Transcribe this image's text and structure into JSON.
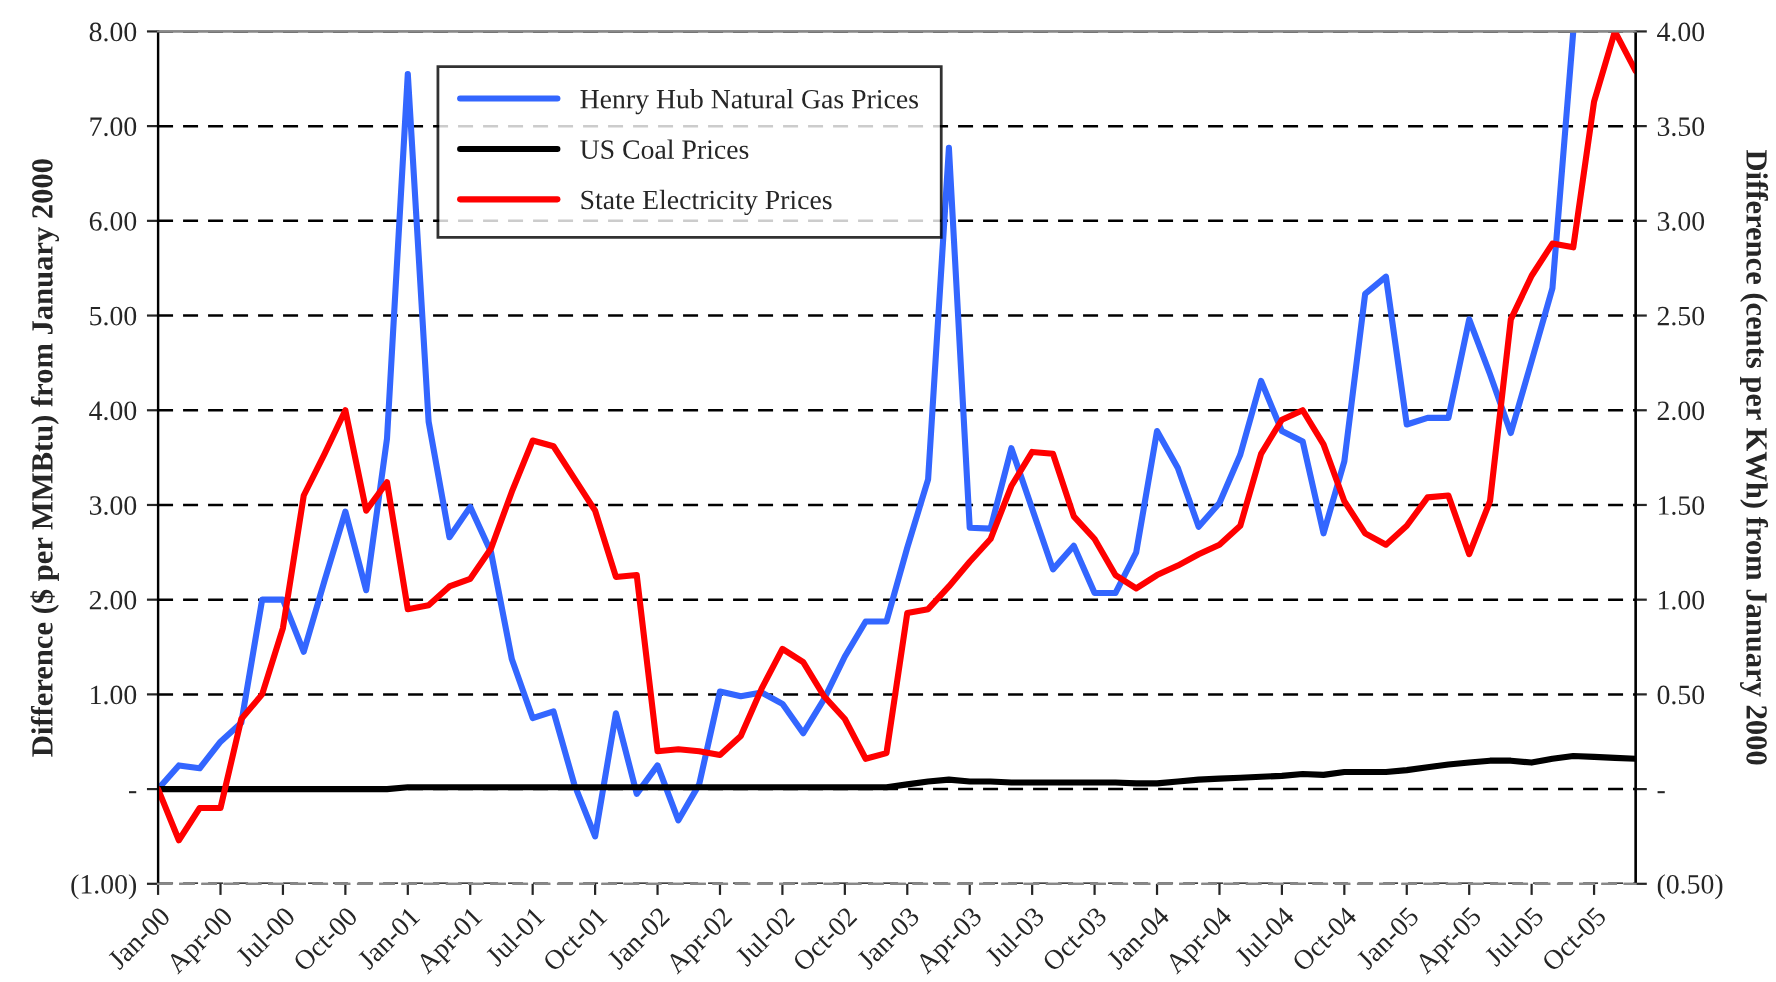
{
  "chart_data": {
    "type": "line",
    "ylabel": "Difference ($ per MMBtu) from January 2000",
    "y2label": "Difference (cents per KWh) from January 2000",
    "categories": [
      "Jan-00",
      null,
      null,
      "Apr-00",
      null,
      null,
      "Jul-00",
      null,
      null,
      "Oct-00",
      null,
      null,
      "Jan-01",
      null,
      null,
      "Apr-01",
      null,
      null,
      "Jul-01",
      null,
      null,
      "Oct-01",
      null,
      null,
      "Jan-02",
      null,
      null,
      "Apr-02",
      null,
      null,
      "Jul-02",
      null,
      null,
      "Oct-02",
      null,
      null,
      "Jan-03",
      null,
      null,
      "Apr-03",
      null,
      null,
      "Jul-03",
      null,
      null,
      "Oct-03",
      null,
      null,
      "Jan-04",
      null,
      null,
      "Apr-04",
      null,
      null,
      "Jul-04",
      null,
      null,
      "Oct-04",
      null,
      null,
      "Jan-05",
      null,
      null,
      "Apr-05",
      null,
      null,
      "Jul-05",
      null,
      null,
      "Oct-05",
      null,
      null
    ],
    "series": [
      {
        "name": "Henry Hub Natural Gas Prices",
        "color": "#3366ff",
        "values": [
          0,
          0.25,
          0.22,
          0.5,
          0.7,
          2.0,
          2.0,
          1.45,
          2.2,
          2.93,
          2.1,
          3.7,
          7.55,
          3.88,
          2.66,
          2.98,
          2.5,
          1.37,
          0.75,
          0.82,
          0.05,
          -0.5,
          0.8,
          -0.05,
          0.25,
          -0.33,
          0.05,
          1.03,
          0.98,
          1.02,
          0.9,
          0.59,
          0.95,
          1.4,
          1.77,
          1.77,
          2.55,
          3.27,
          6.77,
          2.76,
          2.75,
          3.6,
          2.96,
          2.32,
          2.57,
          2.07,
          2.07,
          2.5,
          3.78,
          3.39,
          2.77,
          3.02,
          3.53,
          4.31,
          3.78,
          3.67,
          2.7,
          3.46,
          5.23,
          5.41,
          3.85,
          3.92,
          3.92,
          4.96,
          4.38,
          3.76,
          4.52,
          5.29,
          8.0,
          null,
          null,
          null
        ]
      },
      {
        "name": "US Coal Prices",
        "color": "#000000",
        "values": [
          0,
          0,
          0,
          0,
          0,
          0,
          0,
          0,
          0,
          0,
          0,
          0,
          0.02,
          0.02,
          0.02,
          0.02,
          0.02,
          0.02,
          0.02,
          0.02,
          0.02,
          0.02,
          0.02,
          0.02,
          0.02,
          0.02,
          0.02,
          0.02,
          0.02,
          0.02,
          0.02,
          0.02,
          0.02,
          0.02,
          0.02,
          0.02,
          0.05,
          0.08,
          0.1,
          0.08,
          0.08,
          0.07,
          0.07,
          0.07,
          0.07,
          0.07,
          0.07,
          0.06,
          0.06,
          0.08,
          0.1,
          0.11,
          0.12,
          0.13,
          0.14,
          0.16,
          0.15,
          0.18,
          0.18,
          0.18,
          0.2,
          0.23,
          0.26,
          0.28,
          0.3,
          0.3,
          0.28,
          0.32,
          0.35,
          0.34,
          0.33,
          0.32
        ]
      },
      {
        "name": "State Electricity Prices",
        "color": "#ff0000",
        "axis": "y2",
        "values": [
          0,
          -0.27,
          -0.1,
          -0.1,
          0.37,
          0.5,
          0.85,
          1.55,
          1.77,
          2.0,
          1.47,
          1.62,
          0.95,
          0.97,
          1.07,
          1.11,
          1.27,
          1.57,
          1.84,
          1.81,
          1.64,
          1.47,
          1.12,
          1.13,
          0.2,
          0.21,
          0.2,
          0.18,
          0.28,
          0.53,
          0.74,
          0.67,
          0.49,
          0.37,
          0.16,
          0.19,
          0.93,
          0.95,
          1.07,
          1.2,
          1.32,
          1.6,
          1.78,
          1.77,
          1.44,
          1.32,
          1.13,
          1.06,
          1.13,
          1.18,
          1.24,
          1.29,
          1.39,
          1.77,
          1.95,
          2.0,
          1.82,
          1.52,
          1.35,
          1.29,
          1.39,
          1.54,
          1.55,
          1.24,
          1.52,
          2.48,
          2.71,
          2.88,
          2.86,
          3.63,
          4.0,
          3.79
        ]
      }
    ],
    "ylim": [
      -1,
      8
    ],
    "yticks": [
      {
        "value": -1,
        "label": "(1.00)"
      },
      {
        "value": 0,
        "label": "-"
      },
      {
        "value": 1,
        "label": "1.00"
      },
      {
        "value": 2,
        "label": "2.00"
      },
      {
        "value": 3,
        "label": "3.00"
      },
      {
        "value": 4,
        "label": "4.00"
      },
      {
        "value": 5,
        "label": "5.00"
      },
      {
        "value": 6,
        "label": "6.00"
      },
      {
        "value": 7,
        "label": "7.00"
      },
      {
        "value": 8,
        "label": "8.00"
      }
    ],
    "y2lim": [
      -0.5,
      4
    ],
    "y2ticks": [
      {
        "value": -0.5,
        "label": "(0.50)"
      },
      {
        "value": 0,
        "label": "-"
      },
      {
        "value": 0.5,
        "label": "0.50"
      },
      {
        "value": 1,
        "label": "1.00"
      },
      {
        "value": 1.5,
        "label": "1.50"
      },
      {
        "value": 2,
        "label": "2.00"
      },
      {
        "value": 2.5,
        "label": "2.50"
      },
      {
        "value": 3,
        "label": "3.00"
      },
      {
        "value": 3.5,
        "label": "3.50"
      },
      {
        "value": 4,
        "label": "4.00"
      }
    ],
    "grid": "y",
    "legend": "top left",
    "line_style": "solid",
    "marker": "none"
  }
}
